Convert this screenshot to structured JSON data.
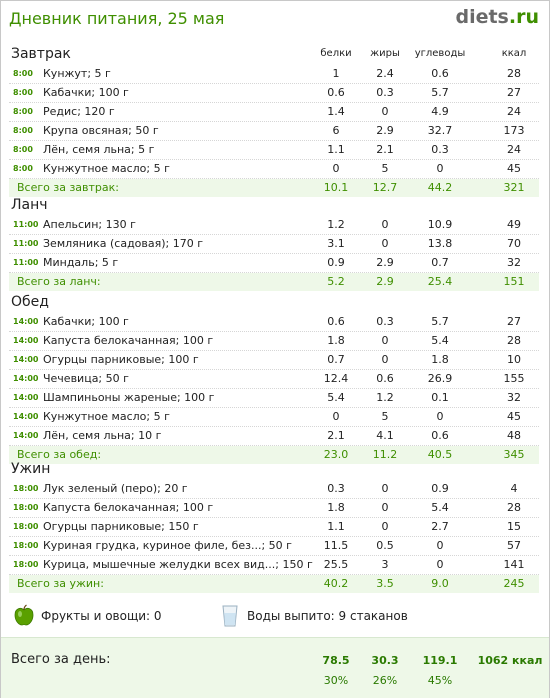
{
  "header": {
    "title": "Дневник питания, 25 мая",
    "logo_main": "diets",
    "logo_tld": ".ru"
  },
  "columns": {
    "protein": "белки",
    "fat": "жиры",
    "carbs": "углеводы",
    "kcal": "ккал"
  },
  "meals": [
    {
      "title": "Завтрак",
      "items": [
        {
          "time": "8:00",
          "food": "Кунжут; 5 г",
          "protein": "1",
          "fat": "2.4",
          "carbs": "0.6",
          "kcal": "28"
        },
        {
          "time": "8:00",
          "food": "Кабачки; 100 г",
          "protein": "0.6",
          "fat": "0.3",
          "carbs": "5.7",
          "kcal": "27"
        },
        {
          "time": "8:00",
          "food": "Редис; 120 г",
          "protein": "1.4",
          "fat": "0",
          "carbs": "4.9",
          "kcal": "24"
        },
        {
          "time": "8:00",
          "food": "Крупа овсяная; 50 г",
          "protein": "6",
          "fat": "2.9",
          "carbs": "32.7",
          "kcal": "173"
        },
        {
          "time": "8:00",
          "food": "Лён, семя льна; 5 г",
          "protein": "1.1",
          "fat": "2.1",
          "carbs": "0.3",
          "kcal": "24"
        },
        {
          "time": "8:00",
          "food": "Кунжутное масло; 5 г",
          "protein": "0",
          "fat": "5",
          "carbs": "0",
          "kcal": "45"
        }
      ],
      "total": {
        "label": "Всего за завтрак:",
        "protein": "10.1",
        "fat": "12.7",
        "carbs": "44.2",
        "kcal": "321"
      }
    },
    {
      "title": "Ланч",
      "items": [
        {
          "time": "11:00",
          "food": "Апельсин; 130 г",
          "protein": "1.2",
          "fat": "0",
          "carbs": "10.9",
          "kcal": "49"
        },
        {
          "time": "11:00",
          "food": "Земляника (садовая); 170 г",
          "protein": "3.1",
          "fat": "0",
          "carbs": "13.8",
          "kcal": "70"
        },
        {
          "time": "11:00",
          "food": "Миндаль; 5 г",
          "protein": "0.9",
          "fat": "2.9",
          "carbs": "0.7",
          "kcal": "32"
        }
      ],
      "total": {
        "label": "Всего за ланч:",
        "protein": "5.2",
        "fat": "2.9",
        "carbs": "25.4",
        "kcal": "151"
      }
    },
    {
      "title": "Обед",
      "items": [
        {
          "time": "14:00",
          "food": "Кабачки; 100 г",
          "protein": "0.6",
          "fat": "0.3",
          "carbs": "5.7",
          "kcal": "27"
        },
        {
          "time": "14:00",
          "food": "Капуста белокачанная; 100 г",
          "protein": "1.8",
          "fat": "0",
          "carbs": "5.4",
          "kcal": "28"
        },
        {
          "time": "14:00",
          "food": "Огурцы парниковые; 100 г",
          "protein": "0.7",
          "fat": "0",
          "carbs": "1.8",
          "kcal": "10"
        },
        {
          "time": "14:00",
          "food": "Чечевица; 50 г",
          "protein": "12.4",
          "fat": "0.6",
          "carbs": "26.9",
          "kcal": "155"
        },
        {
          "time": "14:00",
          "food": "Шампиньоны жареные; 100 г",
          "protein": "5.4",
          "fat": "1.2",
          "carbs": "0.1",
          "kcal": "32"
        },
        {
          "time": "14:00",
          "food": "Кунжутное масло; 5 г",
          "protein": "0",
          "fat": "5",
          "carbs": "0",
          "kcal": "45"
        },
        {
          "time": "14:00",
          "food": "Лён, семя льна; 10 г",
          "protein": "2.1",
          "fat": "4.1",
          "carbs": "0.6",
          "kcal": "48"
        }
      ],
      "total": {
        "label": "Всего за обед:",
        "protein": "23.0",
        "fat": "11.2",
        "carbs": "40.5",
        "kcal": "345"
      }
    },
    {
      "title": "Ужин",
      "items": [
        {
          "time": "18:00",
          "food": "Лук зеленый (перо); 20 г",
          "protein": "0.3",
          "fat": "0",
          "carbs": "0.9",
          "kcal": "4"
        },
        {
          "time": "18:00",
          "food": "Капуста белокачанная; 100 г",
          "protein": "1.8",
          "fat": "0",
          "carbs": "5.4",
          "kcal": "28"
        },
        {
          "time": "18:00",
          "food": "Огурцы парниковые; 150 г",
          "protein": "1.1",
          "fat": "0",
          "carbs": "2.7",
          "kcal": "15"
        },
        {
          "time": "18:00",
          "food": "Куриная грудка, куриное филе, без...; 50 г",
          "protein": "11.5",
          "fat": "0.5",
          "carbs": "0",
          "kcal": "57"
        },
        {
          "time": "18:00",
          "food": "Курица, мышечные желудки всех вид...; 150 г",
          "protein": "25.5",
          "fat": "3",
          "carbs": "0",
          "kcal": "141"
        }
      ],
      "total": {
        "label": "Всего за ужин:",
        "protein": "40.2",
        "fat": "3.5",
        "carbs": "9.0",
        "kcal": "245"
      }
    }
  ],
  "extras": {
    "fruits": "Фрукты и овощи: 0",
    "water": "Воды выпито: 9 стаканов",
    "apple_icon": "apple-icon",
    "glass_icon": "water-glass-icon",
    "apple_color": "#5aa000"
  },
  "day_total": {
    "label": "Всего за день:",
    "protein": "78.5",
    "fat": "30.3",
    "carbs": "119.1",
    "kcal": "1062 ккал",
    "protein_pct": "30%",
    "fat_pct": "26%",
    "carbs_pct": "45%"
  },
  "colors": {
    "accent": "#3f8f00",
    "total_bg": "#eef8e8"
  }
}
